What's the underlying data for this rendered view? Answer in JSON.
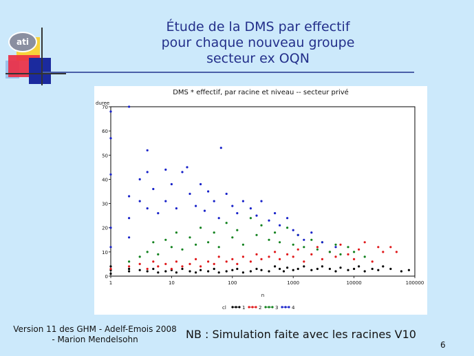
{
  "logo": {
    "text": "ati"
  },
  "title": {
    "line1": "Étude de la DMS par effectif",
    "line2": "pour chaque nouveau groupe",
    "line3": "secteur ex OQN"
  },
  "footer": {
    "version_line1": "Version 11 des GHM - Adelf-Emois 2008",
    "version_line2": "- Marion Mendelsohn",
    "note": "NB : Simulation faite avec les racines V10",
    "page_number": "6"
  },
  "colors": {
    "background": "#cce9fb",
    "title": "#232f8a",
    "cl1": "#000000",
    "cl2": "#e0191b",
    "cl3": "#13821f",
    "cl4": "#1822c9"
  },
  "chart_data": {
    "type": "scatter",
    "title": "DMS * effectif, par racine et niveau -- secteur privé",
    "xlabel": "n",
    "ylabel": "duree",
    "x_scale": "log",
    "xlim": [
      1,
      100000
    ],
    "ylim": [
      0,
      70
    ],
    "x_ticks": [
      "1",
      "10",
      "100",
      "1000",
      "10000",
      "100000"
    ],
    "y_ticks": [
      "0",
      "10",
      "20",
      "30",
      "40",
      "50",
      "60",
      "70"
    ],
    "legend_title": "cl",
    "legend_position": "bottom",
    "grid": false,
    "series": [
      {
        "name": "1",
        "color": "#000000",
        "points": [
          [
            1,
            1
          ],
          [
            1,
            2.5
          ],
          [
            1,
            4
          ],
          [
            2,
            2
          ],
          [
            2,
            3
          ],
          [
            3,
            2.5
          ],
          [
            4,
            2
          ],
          [
            5,
            3
          ],
          [
            6,
            1.5
          ],
          [
            8,
            2
          ],
          [
            10,
            2.5
          ],
          [
            12,
            1.5
          ],
          [
            15,
            3
          ],
          [
            20,
            2
          ],
          [
            25,
            1.5
          ],
          [
            30,
            2.5
          ],
          [
            40,
            2
          ],
          [
            50,
            3
          ],
          [
            60,
            1.5
          ],
          [
            80,
            2
          ],
          [
            100,
            2.5
          ],
          [
            120,
            3
          ],
          [
            150,
            1.5
          ],
          [
            200,
            2
          ],
          [
            250,
            3
          ],
          [
            300,
            2.5
          ],
          [
            400,
            2
          ],
          [
            500,
            4
          ],
          [
            600,
            3
          ],
          [
            700,
            2
          ],
          [
            800,
            3.5
          ],
          [
            1000,
            2.5
          ],
          [
            1200,
            3
          ],
          [
            1500,
            4
          ],
          [
            2000,
            2.5
          ],
          [
            2500,
            3
          ],
          [
            3000,
            4
          ],
          [
            4000,
            3
          ],
          [
            5000,
            2
          ],
          [
            6000,
            3.5
          ],
          [
            8000,
            2.5
          ],
          [
            10000,
            3
          ],
          [
            12000,
            4
          ],
          [
            15000,
            2
          ],
          [
            20000,
            3
          ],
          [
            25000,
            2.5
          ],
          [
            30000,
            4
          ],
          [
            40000,
            3
          ],
          [
            60000,
            2
          ],
          [
            80000,
            2.5
          ]
        ]
      },
      {
        "name": "2",
        "color": "#e0191b",
        "points": [
          [
            1,
            3
          ],
          [
            2,
            4
          ],
          [
            3,
            5
          ],
          [
            4,
            3
          ],
          [
            5,
            6
          ],
          [
            6,
            4
          ],
          [
            8,
            5
          ],
          [
            10,
            3
          ],
          [
            12,
            6
          ],
          [
            15,
            4
          ],
          [
            20,
            5
          ],
          [
            25,
            7
          ],
          [
            30,
            4
          ],
          [
            40,
            6
          ],
          [
            50,
            5
          ],
          [
            60,
            8
          ],
          [
            80,
            6
          ],
          [
            100,
            7
          ],
          [
            120,
            5
          ],
          [
            150,
            8
          ],
          [
            200,
            6
          ],
          [
            250,
            9
          ],
          [
            300,
            7
          ],
          [
            400,
            8
          ],
          [
            500,
            10
          ],
          [
            600,
            7
          ],
          [
            800,
            9
          ],
          [
            1000,
            8
          ],
          [
            1200,
            11
          ],
          [
            1500,
            6
          ],
          [
            2000,
            9
          ],
          [
            2500,
            12
          ],
          [
            3000,
            7
          ],
          [
            4000,
            10
          ],
          [
            5000,
            8
          ],
          [
            6000,
            13
          ],
          [
            8000,
            9
          ],
          [
            10000,
            7
          ],
          [
            12000,
            11
          ],
          [
            15000,
            14
          ],
          [
            20000,
            6
          ],
          [
            25000,
            12
          ],
          [
            30000,
            10
          ],
          [
            40000,
            12
          ],
          [
            50000,
            10
          ]
        ]
      },
      {
        "name": "3",
        "color": "#13821f",
        "points": [
          [
            2,
            6
          ],
          [
            3,
            8
          ],
          [
            4,
            10
          ],
          [
            5,
            14
          ],
          [
            6,
            9
          ],
          [
            8,
            15
          ],
          [
            10,
            12
          ],
          [
            12,
            18
          ],
          [
            15,
            11
          ],
          [
            20,
            16
          ],
          [
            25,
            13
          ],
          [
            30,
            20
          ],
          [
            40,
            14
          ],
          [
            50,
            18
          ],
          [
            60,
            12
          ],
          [
            80,
            22
          ],
          [
            100,
            16
          ],
          [
            120,
            19
          ],
          [
            150,
            13
          ],
          [
            200,
            24
          ],
          [
            250,
            17
          ],
          [
            300,
            21
          ],
          [
            400,
            15
          ],
          [
            500,
            18
          ],
          [
            600,
            14
          ],
          [
            800,
            20
          ],
          [
            1000,
            13
          ],
          [
            1200,
            17
          ],
          [
            1500,
            12
          ],
          [
            2000,
            15
          ],
          [
            2500,
            11
          ],
          [
            3000,
            14
          ],
          [
            4000,
            10
          ],
          [
            5000,
            13
          ],
          [
            6000,
            9
          ],
          [
            8000,
            12
          ],
          [
            10000,
            10
          ],
          [
            15000,
            8
          ]
        ]
      },
      {
        "name": "4",
        "color": "#1822c9",
        "points": [
          [
            1,
            68
          ],
          [
            1,
            57
          ],
          [
            1,
            42
          ],
          [
            1,
            20
          ],
          [
            1,
            12
          ],
          [
            2,
            70
          ],
          [
            2,
            33
          ],
          [
            2,
            24
          ],
          [
            2,
            16
          ],
          [
            3,
            40
          ],
          [
            3,
            31
          ],
          [
            4,
            52
          ],
          [
            4,
            43
          ],
          [
            4,
            28
          ],
          [
            5,
            36
          ],
          [
            6,
            26
          ],
          [
            8,
            44
          ],
          [
            8,
            31
          ],
          [
            10,
            38
          ],
          [
            12,
            28
          ],
          [
            15,
            43
          ],
          [
            18,
            45
          ],
          [
            20,
            34
          ],
          [
            25,
            29
          ],
          [
            30,
            38
          ],
          [
            35,
            27
          ],
          [
            40,
            35
          ],
          [
            50,
            31
          ],
          [
            60,
            24
          ],
          [
            65,
            53
          ],
          [
            80,
            34
          ],
          [
            100,
            29
          ],
          [
            120,
            26
          ],
          [
            150,
            31
          ],
          [
            200,
            28
          ],
          [
            250,
            25
          ],
          [
            300,
            31
          ],
          [
            400,
            23
          ],
          [
            500,
            26
          ],
          [
            600,
            21
          ],
          [
            800,
            24
          ],
          [
            1000,
            19
          ],
          [
            1200,
            17
          ],
          [
            1500,
            15
          ],
          [
            2000,
            18
          ],
          [
            3000,
            14
          ],
          [
            5000,
            12
          ]
        ]
      }
    ]
  }
}
